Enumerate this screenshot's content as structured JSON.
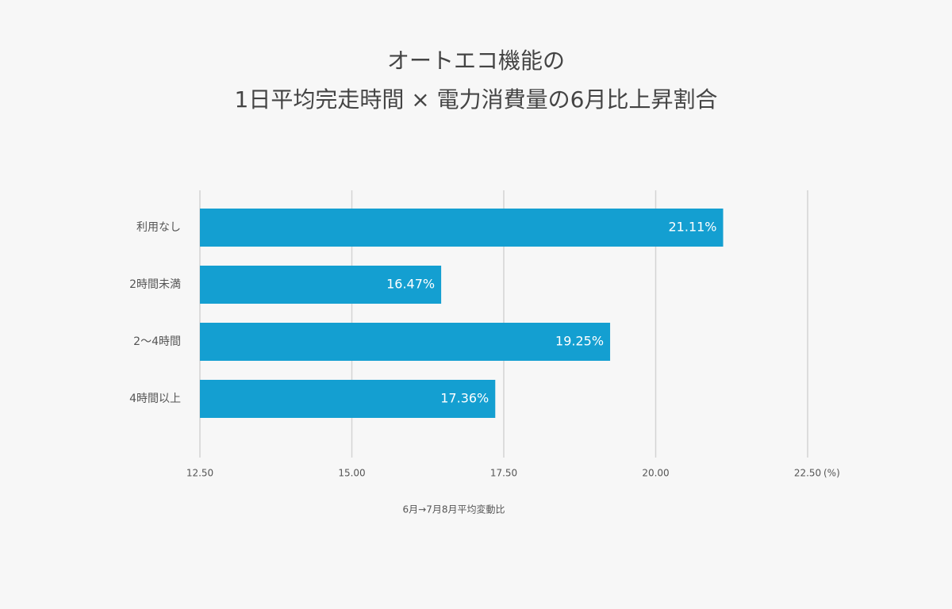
{
  "chart_data": {
    "type": "hbar",
    "title": [
      "オートエコ機能の",
      "1日平均完走時間 × 電力消費量の6月比上昇割合"
    ],
    "categories": [
      "利用なし",
      "2時間未満",
      "2〜4時間",
      "4時間以上"
    ],
    "values": [
      21.11,
      16.47,
      19.25,
      17.36
    ],
    "value_labels": [
      "21.11%",
      "16.47%",
      "19.25%",
      "17.36%"
    ],
    "color": "#149fd1",
    "xlim": [
      12.5,
      22.5
    ],
    "xticks": [
      {
        "value": 12.5,
        "label": "12.50"
      },
      {
        "value": 15,
        "label": "15.00"
      },
      {
        "value": 17.5,
        "label": "17.50"
      },
      {
        "value": 20,
        "label": "20.00"
      },
      {
        "value": 22.5,
        "label": "22.50"
      }
    ],
    "x_unit": "(%)",
    "xlabel": "6月→7月8月平均変動比",
    "grid": true
  }
}
